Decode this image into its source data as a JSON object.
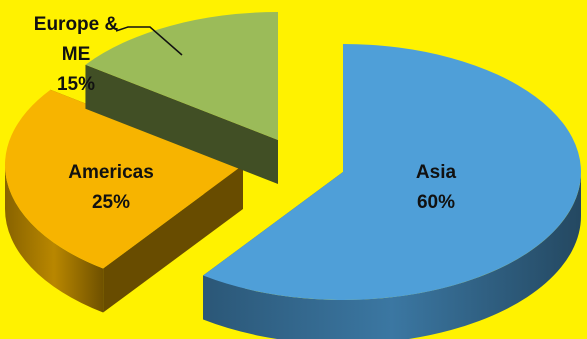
{
  "chart_data": {
    "type": "pie",
    "style": "3d-exploded",
    "background_color": "#FFF200",
    "slices": [
      {
        "name": "Asia",
        "value": 60,
        "label_value": "60%",
        "color": "#4F9FD8"
      },
      {
        "name": "Americas",
        "value": 25,
        "label_value": "25%",
        "color": "#F7B400"
      },
      {
        "name": "Europe & ME",
        "label_lines": [
          "Europe &",
          "ME"
        ],
        "value": 15,
        "label_value": "15%",
        "color": "#9BBB59"
      }
    ],
    "legend": "none"
  }
}
